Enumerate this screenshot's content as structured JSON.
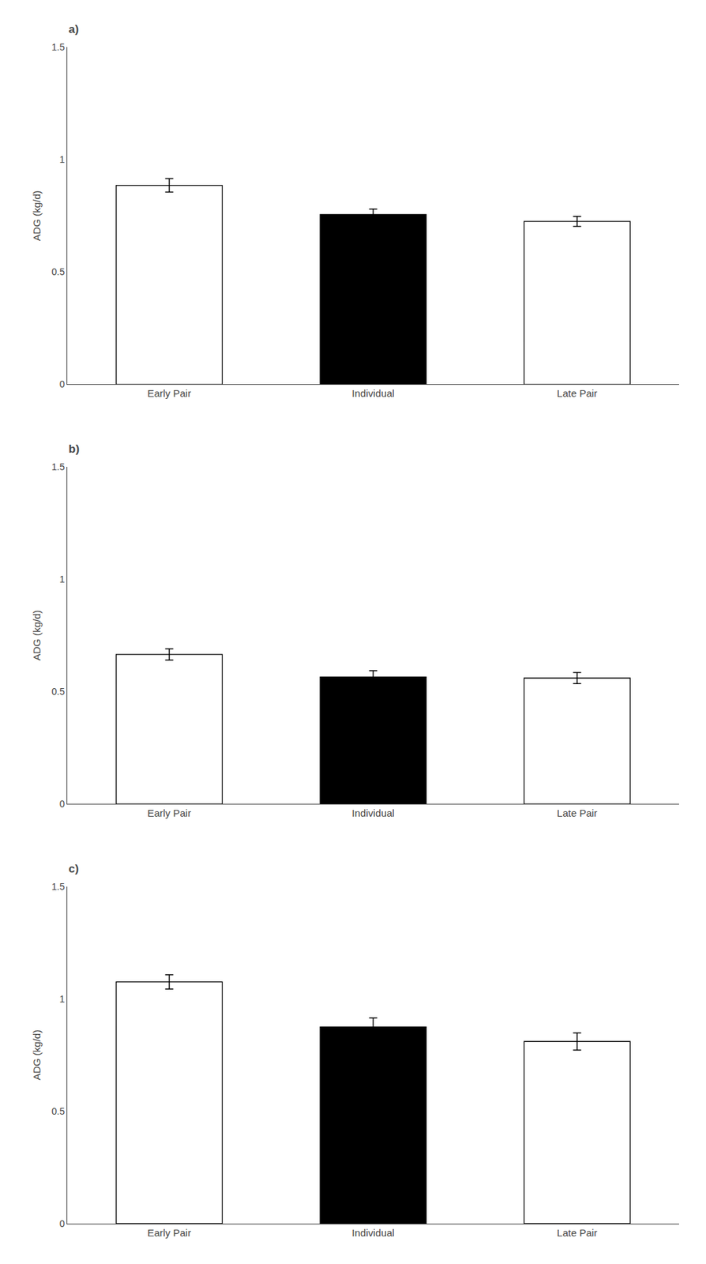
{
  "chart_data": [
    {
      "type": "bar",
      "title": "a)",
      "categories": [
        "Early Pair",
        "Individual",
        "Late Pair"
      ],
      "values": [
        0.885,
        0.755,
        0.725
      ],
      "errors": [
        0.03,
        0.025,
        0.022
      ],
      "colors": [
        "#ffffff",
        "#000000",
        "#ffffff"
      ],
      "ylabel": "ADG (kg/d)",
      "ylim": [
        0,
        1.5
      ],
      "yticks": [
        0,
        0.5,
        1,
        1.5
      ],
      "grid": false
    },
    {
      "type": "bar",
      "title": "b)",
      "categories": [
        "Early Pair",
        "Individual",
        "Late Pair"
      ],
      "values": [
        0.665,
        0.565,
        0.56
      ],
      "errors": [
        0.025,
        0.028,
        0.025
      ],
      "colors": [
        "#ffffff",
        "#000000",
        "#ffffff"
      ],
      "ylabel": "ADG (kg/d)",
      "ylim": [
        0,
        1.5
      ],
      "yticks": [
        0,
        0.5,
        1,
        1.5
      ],
      "grid": false
    },
    {
      "type": "bar",
      "title": "c)",
      "categories": [
        "Early Pair",
        "Individual",
        "Late Pair"
      ],
      "values": [
        1.075,
        0.875,
        0.81
      ],
      "errors": [
        0.032,
        0.04,
        0.038
      ],
      "colors": [
        "#ffffff",
        "#000000",
        "#ffffff"
      ],
      "ylabel": "ADG (kg/d)",
      "ylim": [
        0,
        1.5
      ],
      "yticks": [
        0,
        0.5,
        1,
        1.5
      ],
      "grid": false
    }
  ]
}
